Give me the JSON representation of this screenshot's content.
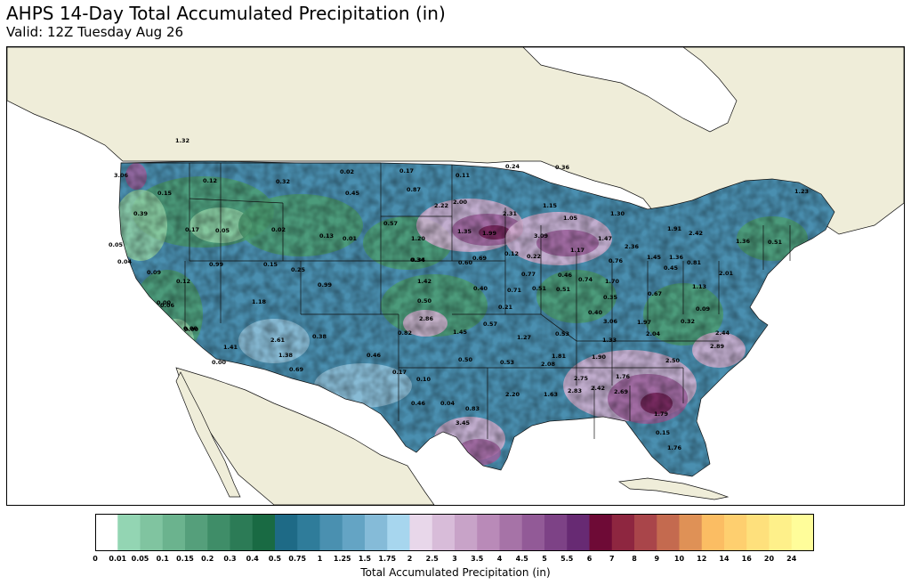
{
  "title": "AHPS 14-Day Total Accumulated Precipitation (in)",
  "subtitle": "Valid: 12Z Tuesday Aug 26",
  "colorbar": {
    "label": "Total Accumulated Precipitation (in)",
    "ticks": [
      "0",
      "0.01",
      "0.05",
      "0.1",
      "0.15",
      "0.2",
      "0.3",
      "0.4",
      "0.5",
      "0.75",
      "1",
      "1.25",
      "1.5",
      "1.75",
      "2",
      "2.5",
      "3",
      "3.5",
      "4",
      "4.5",
      "5",
      "5.5",
      "6",
      "7",
      "8",
      "9",
      "10",
      "12",
      "14",
      "16",
      "20",
      "24"
    ],
    "colors": [
      "#ffffff",
      "#93d5b3",
      "#80c4a0",
      "#6bb38e",
      "#559f7b",
      "#3f8d68",
      "#2c7b56",
      "#196a43",
      "#1e6a86",
      "#2f7c9a",
      "#4a90b0",
      "#64a4c4",
      "#85bbd8",
      "#a7d6ee",
      "#e8d7ea",
      "#d8bcd9",
      "#c8a3c8",
      "#b98ab8",
      "#a673a7",
      "#925a97",
      "#7d4286",
      "#672a73",
      "#6e0a36",
      "#8e2640",
      "#a9454a",
      "#c46a4f",
      "#df9156",
      "#fbbd63",
      "#fecf6f",
      "#fee07c",
      "#fef08a",
      "#fffd9a"
    ]
  },
  "map": {
    "colors": {
      "land": "#efedd9",
      "water": "#ffffff",
      "green": "#4c9e72",
      "light_green": "#8fcfa4",
      "blue": "#4a8fb0",
      "light_blue": "#93c3dc",
      "purple": "#9a5f9a",
      "light_purple": "#d6b3d4",
      "dark_magenta": "#6e1f54"
    },
    "labels": [
      {
        "v": "1.32"
      },
      {
        "v": "3.06"
      },
      {
        "v": "0.15"
      },
      {
        "v": "0.12"
      },
      {
        "v": "0.32"
      },
      {
        "v": "0.02"
      },
      {
        "v": "0.45"
      },
      {
        "v": "0.17"
      },
      {
        "v": "0.87"
      },
      {
        "v": "0.11"
      },
      {
        "v": "0.24"
      },
      {
        "v": "0.36"
      },
      {
        "v": "0.39"
      },
      {
        "v": "2.00"
      },
      {
        "v": "2.22"
      },
      {
        "v": "2.31"
      },
      {
        "v": "1.15"
      },
      {
        "v": "1.05"
      },
      {
        "v": "1.30"
      },
      {
        "v": "1.23"
      },
      {
        "v": "0.17"
      },
      {
        "v": "0.05"
      },
      {
        "v": "0.02"
      },
      {
        "v": "0.13"
      },
      {
        "v": "0.01"
      },
      {
        "v": "0.57"
      },
      {
        "v": "1.20"
      },
      {
        "v": "1.35"
      },
      {
        "v": "1.99"
      },
      {
        "v": "3.09"
      },
      {
        "v": "1.47"
      },
      {
        "v": "0.60"
      },
      {
        "v": "0.34"
      },
      {
        "v": "0.05"
      },
      {
        "v": "1.91"
      },
      {
        "v": "2.42"
      },
      {
        "v": "1.36"
      },
      {
        "v": "0.51"
      },
      {
        "v": "0.04"
      },
      {
        "v": "0.09"
      },
      {
        "v": "0.99"
      },
      {
        "v": "0.15"
      },
      {
        "v": "0.34"
      },
      {
        "v": "0.69"
      },
      {
        "v": "0.12"
      },
      {
        "v": "0.22"
      },
      {
        "v": "1.17"
      },
      {
        "v": "2.36"
      },
      {
        "v": "1.45"
      },
      {
        "v": "1.36"
      },
      {
        "v": "0.76"
      },
      {
        "v": "0.81"
      },
      {
        "v": "0.45"
      },
      {
        "v": "0.12"
      },
      {
        "v": "0.00"
      },
      {
        "v": "0.06"
      },
      {
        "v": "0.25"
      },
      {
        "v": "1.42"
      },
      {
        "v": "0.77"
      },
      {
        "v": "0.46"
      },
      {
        "v": "0.74"
      },
      {
        "v": "1.70"
      },
      {
        "v": "2.01"
      },
      {
        "v": "1.18"
      },
      {
        "v": "0.00"
      },
      {
        "v": "0.99"
      },
      {
        "v": "0.40"
      },
      {
        "v": "0.71"
      },
      {
        "v": "0.51"
      },
      {
        "v": "0.51"
      },
      {
        "v": "0.35"
      },
      {
        "v": "0.67"
      },
      {
        "v": "1.13"
      },
      {
        "v": "0.50"
      },
      {
        "v": "0.21"
      },
      {
        "v": "0.40"
      },
      {
        "v": "0.09"
      },
      {
        "v": "2.86"
      },
      {
        "v": "0.57"
      },
      {
        "v": "3.06"
      },
      {
        "v": "1.97"
      },
      {
        "v": "0.32"
      },
      {
        "v": "0.00"
      },
      {
        "v": "0.82"
      },
      {
        "v": "1.45"
      },
      {
        "v": "1.27"
      },
      {
        "v": "0.53"
      },
      {
        "v": "1.33"
      },
      {
        "v": "2.04"
      },
      {
        "v": "2.89"
      },
      {
        "v": "2.44"
      },
      {
        "v": "1.41"
      },
      {
        "v": "2.61"
      },
      {
        "v": "0.38"
      },
      {
        "v": "1.38"
      },
      {
        "v": "1.81"
      },
      {
        "v": "1.90"
      },
      {
        "v": "2.50"
      },
      {
        "v": "0.00"
      },
      {
        "v": "0.69"
      },
      {
        "v": "0.46"
      },
      {
        "v": "0.50"
      },
      {
        "v": "0.53"
      },
      {
        "v": "2.08"
      },
      {
        "v": "0.17"
      },
      {
        "v": "0.10"
      },
      {
        "v": "2.75"
      },
      {
        "v": "1.76"
      },
      {
        "v": "0.46"
      },
      {
        "v": "0.04"
      },
      {
        "v": "2.20"
      },
      {
        "v": "1.63"
      },
      {
        "v": "2.83"
      },
      {
        "v": "2.42"
      },
      {
        "v": "2.69"
      },
      {
        "v": "0.83"
      },
      {
        "v": "1.79"
      },
      {
        "v": "0.15"
      },
      {
        "v": "3.45"
      },
      {
        "v": "1.76"
      }
    ]
  }
}
